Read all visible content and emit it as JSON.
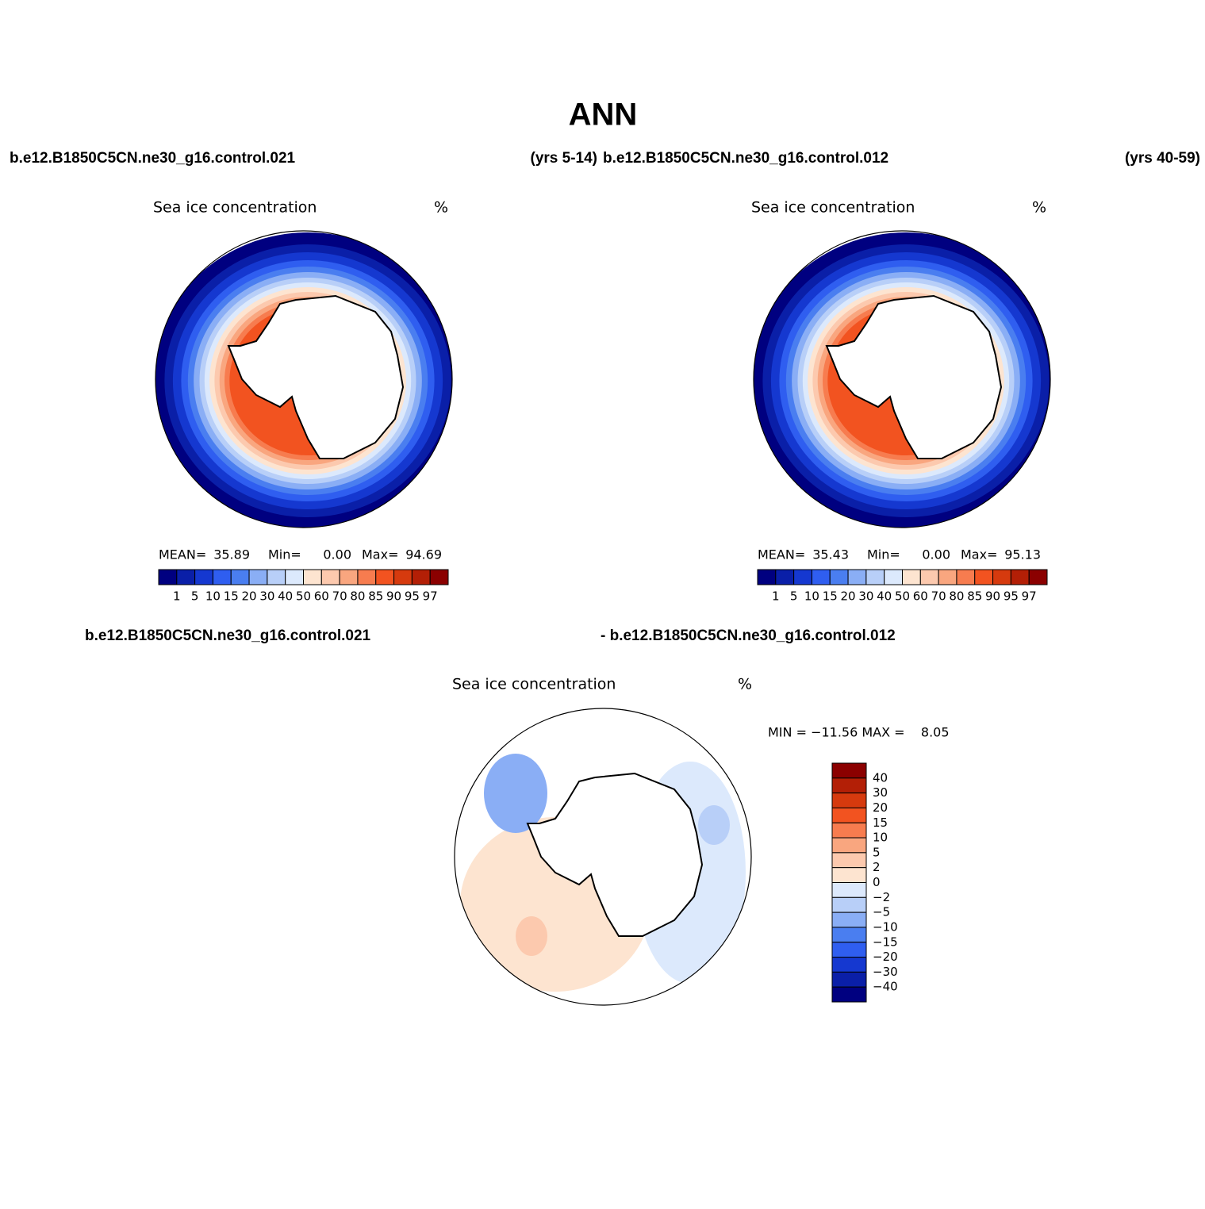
{
  "title": "ANN",
  "panels": [
    {
      "case": "b.e12.B1850C5CN.ne30_g16.control.021",
      "years": "(yrs 5-14)",
      "label": "Sea ice concentration",
      "units": "%",
      "stats": [
        "MEAN=",
        "35.89",
        "Min=",
        "0.00",
        "Max=",
        "94.69"
      ]
    },
    {
      "case": "b.e12.B1850C5CN.ne30_g16.control.012",
      "years": "(yrs 40-59)",
      "label": "Sea ice concentration",
      "units": "%",
      "stats": [
        "MEAN=",
        "35.43",
        "Min=",
        "0.00",
        "Max=",
        "95.13"
      ]
    }
  ],
  "levels": [
    "1",
    "5",
    "10",
    "15",
    "20",
    "30",
    "40",
    "50",
    "60",
    "70",
    "80",
    "85",
    "90",
    "95",
    "97"
  ],
  "colors": [
    "#000080",
    "#0a1fa8",
    "#1538d0",
    "#2f5ef0",
    "#4a7ef0",
    "#8aaef5",
    "#b8cff8",
    "#dce9fc",
    "#fde4d0",
    "#fcc9ae",
    "#f9a67f",
    "#f77c4f",
    "#f25320",
    "#d63a0e",
    "#b31f06",
    "#8b0000"
  ],
  "difference": {
    "case_a": "b.e12.B1850C5CN.ne30_g16.control.021",
    "case_b": "- b.e12.B1850C5CN.ne30_g16.control.012",
    "label": "Sea ice concentration",
    "units": "%",
    "minmax": "MIN = −11.56 MAX =    8.05",
    "levels": [
      "−40",
      "−30",
      "−20",
      "−15",
      "−10",
      "−5",
      "−2",
      "0",
      "2",
      "5",
      "10",
      "15",
      "20",
      "30",
      "40"
    ]
  }
}
